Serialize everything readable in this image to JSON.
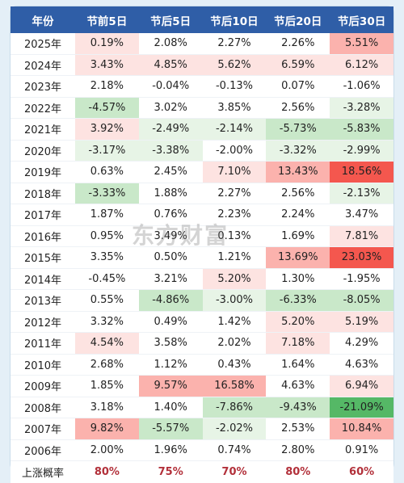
{
  "headers": [
    "年份",
    "节前5日",
    "节后5日",
    "节后10日",
    "节后20日",
    "节后30日"
  ],
  "colors": {
    "header_bg": "#2f5ea7",
    "strong_red": "#f4574e",
    "mid_red": "#fbb2ad",
    "light_red": "#fde3e1",
    "strong_green": "#55b866",
    "mid_green": "#c9e8c9",
    "light_green": "#e7f4e6",
    "prob_text": "#b2303a"
  },
  "rows": [
    {
      "year": "2025年",
      "values": [
        "0.19%",
        "2.08%",
        "2.27%",
        "2.26%",
        "5.51%"
      ],
      "shades": [
        "light_red",
        "none",
        "none",
        "none",
        "mid_red"
      ]
    },
    {
      "year": "2024年",
      "values": [
        "3.43%",
        "4.85%",
        "5.62%",
        "6.59%",
        "6.12%"
      ],
      "shades": [
        "light_red",
        "light_red",
        "light_red",
        "light_red",
        "light_red"
      ]
    },
    {
      "year": "2023年",
      "values": [
        "2.18%",
        "-0.04%",
        "-0.13%",
        "0.07%",
        "-1.06%"
      ],
      "shades": [
        "none",
        "none",
        "none",
        "none",
        "none"
      ]
    },
    {
      "year": "2022年",
      "values": [
        "-4.57%",
        "3.02%",
        "3.85%",
        "2.56%",
        "-3.28%"
      ],
      "shades": [
        "mid_green",
        "none",
        "none",
        "none",
        "light_green"
      ]
    },
    {
      "year": "2021年",
      "values": [
        "3.92%",
        "-2.49%",
        "-2.14%",
        "-5.73%",
        "-5.83%"
      ],
      "shades": [
        "light_red",
        "light_green",
        "light_green",
        "mid_green",
        "mid_green"
      ]
    },
    {
      "year": "2020年",
      "values": [
        "-3.17%",
        "-3.38%",
        "-2.00%",
        "-3.32%",
        "-2.99%"
      ],
      "shades": [
        "light_green",
        "light_green",
        "none",
        "light_green",
        "light_green"
      ]
    },
    {
      "year": "2019年",
      "values": [
        "0.63%",
        "2.45%",
        "7.10%",
        "13.43%",
        "18.56%"
      ],
      "shades": [
        "none",
        "none",
        "light_red",
        "mid_red",
        "strong_red"
      ]
    },
    {
      "year": "2018年",
      "values": [
        "-3.33%",
        "1.88%",
        "2.27%",
        "2.56%",
        "-2.13%"
      ],
      "shades": [
        "mid_green",
        "none",
        "none",
        "none",
        "light_green"
      ]
    },
    {
      "year": "2017年",
      "values": [
        "1.87%",
        "0.76%",
        "2.23%",
        "2.24%",
        "3.47%"
      ],
      "shades": [
        "none",
        "none",
        "none",
        "none",
        "none"
      ]
    },
    {
      "year": "2016年",
      "values": [
        "0.95%",
        "3.49%",
        "0.13%",
        "1.69%",
        "7.81%"
      ],
      "shades": [
        "none",
        "none",
        "none",
        "none",
        "light_red"
      ]
    },
    {
      "year": "2015年",
      "values": [
        "3.35%",
        "0.50%",
        "1.21%",
        "13.69%",
        "23.03%"
      ],
      "shades": [
        "none",
        "none",
        "none",
        "mid_red",
        "strong_red"
      ]
    },
    {
      "year": "2014年",
      "values": [
        "-0.45%",
        "3.21%",
        "5.20%",
        "1.30%",
        "-1.95%"
      ],
      "shades": [
        "none",
        "none",
        "light_red",
        "none",
        "none"
      ]
    },
    {
      "year": "2013年",
      "values": [
        "0.55%",
        "-4.86%",
        "-3.00%",
        "-6.33%",
        "-8.05%"
      ],
      "shades": [
        "none",
        "mid_green",
        "light_green",
        "mid_green",
        "mid_green"
      ]
    },
    {
      "year": "2012年",
      "values": [
        "3.32%",
        "0.49%",
        "1.42%",
        "5.20%",
        "5.19%"
      ],
      "shades": [
        "none",
        "none",
        "none",
        "light_red",
        "light_red"
      ]
    },
    {
      "year": "2011年",
      "values": [
        "4.54%",
        "3.58%",
        "2.02%",
        "7.18%",
        "4.29%"
      ],
      "shades": [
        "light_red",
        "none",
        "none",
        "light_red",
        "none"
      ]
    },
    {
      "year": "2010年",
      "values": [
        "2.68%",
        "1.12%",
        "0.43%",
        "1.64%",
        "4.63%"
      ],
      "shades": [
        "none",
        "none",
        "none",
        "none",
        "none"
      ]
    },
    {
      "year": "2009年",
      "values": [
        "1.85%",
        "9.57%",
        "16.58%",
        "4.63%",
        "6.94%"
      ],
      "shades": [
        "none",
        "mid_red",
        "mid_red",
        "none",
        "light_red"
      ]
    },
    {
      "year": "2008年",
      "values": [
        "3.18%",
        "1.40%",
        "-7.86%",
        "-9.43%",
        "-21.09%"
      ],
      "shades": [
        "none",
        "none",
        "mid_green",
        "mid_green",
        "strong_green"
      ]
    },
    {
      "year": "2007年",
      "values": [
        "9.82%",
        "-5.57%",
        "-2.02%",
        "2.53%",
        "10.84%"
      ],
      "shades": [
        "mid_red",
        "mid_green",
        "light_green",
        "none",
        "mid_red"
      ]
    },
    {
      "year": "2006年",
      "values": [
        "2.00%",
        "1.96%",
        "0.74%",
        "2.80%",
        "0.91%"
      ],
      "shades": [
        "none",
        "none",
        "none",
        "none",
        "none"
      ]
    }
  ],
  "summary": {
    "label": "上涨概率",
    "values": [
      "80%",
      "75%",
      "70%",
      "80%",
      "60%"
    ]
  },
  "watermark": "东方财富"
}
